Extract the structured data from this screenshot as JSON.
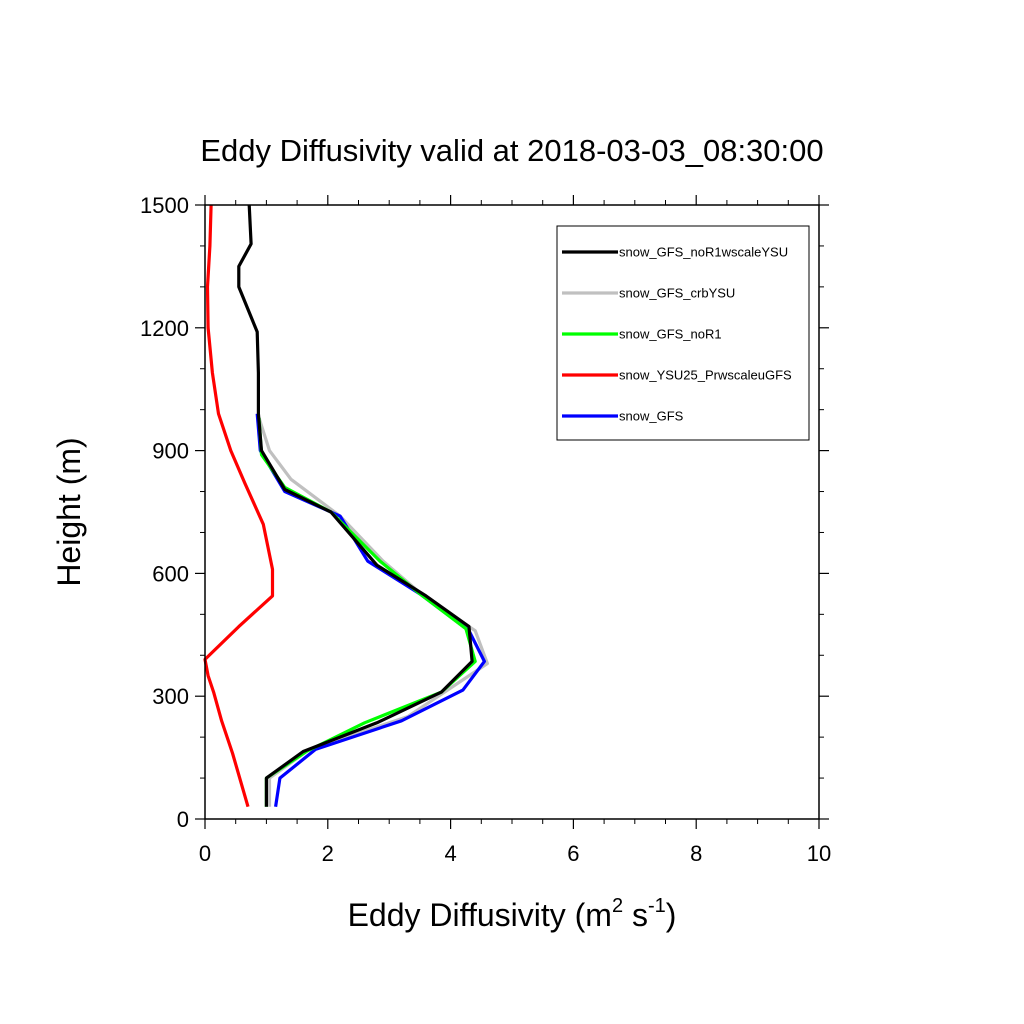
{
  "chart_data": {
    "type": "line",
    "title": "Eddy Diffusivity valid at 2018-03-03_08:30:00",
    "xlabel": "Eddy Diffusivity",
    "xlabel_units": {
      "base": "(m",
      "exp1": "2",
      "mid": " s",
      "exp2": "-1",
      "end": ")"
    },
    "ylabel": "Height (m)",
    "xlim": [
      0,
      10
    ],
    "ylim": [
      0,
      1500
    ],
    "xticks": [
      0,
      2,
      4,
      6,
      8,
      10
    ],
    "xtick_labels": [
      "0",
      "2",
      "4",
      "6",
      "8",
      "10"
    ],
    "yticks": [
      0,
      300,
      600,
      900,
      1200,
      1500
    ],
    "ytick_labels": [
      "0",
      "300",
      "600",
      "900",
      "1200",
      "1500"
    ],
    "grid": false,
    "legend_position": "top-right",
    "series": [
      {
        "name": "snow_GFS_crbYSU",
        "color": "#c0c0c0",
        "x": [
          1.05,
          1.05,
          1.7,
          3.3,
          4.6,
          4.4,
          3.6,
          2.9,
          2.2,
          1.4,
          1.05,
          0.88
        ],
        "y": [
          30,
          100,
          170,
          250,
          380,
          460,
          540,
          630,
          740,
          830,
          900,
          980
        ]
      },
      {
        "name": "snow_GFS",
        "color": "#0000ff",
        "x": [
          1.15,
          1.22,
          1.8,
          3.2,
          4.2,
          4.55,
          4.3,
          3.5,
          2.65,
          2.2,
          1.3,
          0.9,
          0.85
        ],
        "y": [
          30,
          100,
          170,
          240,
          315,
          385,
          460,
          550,
          630,
          740,
          800,
          900,
          990
        ]
      },
      {
        "name": "snow_GFS_noR1",
        "color": "#00ff00",
        "x": [
          1.0,
          1.0,
          1.65,
          2.6,
          3.85,
          4.4,
          4.25,
          3.5,
          2.85,
          2.05,
          1.3,
          0.92,
          0.88
        ],
        "y": [
          30,
          100,
          165,
          235,
          310,
          385,
          465,
          550,
          630,
          750,
          810,
          890,
          980
        ]
      },
      {
        "name": "snow_YSU25_PrwscaleuGFS",
        "color": "#ff0000",
        "x": [
          0.7,
          0.45,
          0.27,
          0.14,
          0.05,
          0.0,
          0.55,
          1.1,
          1.1,
          0.95,
          0.65,
          0.42,
          0.22,
          0.12,
          0.05,
          0.04,
          0.08,
          0.1
        ],
        "y": [
          30,
          160,
          240,
          310,
          350,
          390,
          470,
          545,
          610,
          720,
          820,
          900,
          990,
          1090,
          1200,
          1300,
          1400,
          1500
        ]
      },
      {
        "name": "snow_GFS_noR1wscaleYSU",
        "color": "#000000",
        "x": [
          1.0,
          1.0,
          1.6,
          2.8,
          3.85,
          4.35,
          4.3,
          3.6,
          2.8,
          2.05,
          1.3,
          0.92,
          0.87,
          0.87,
          0.85,
          0.55,
          0.55,
          0.75,
          0.72
        ],
        "y": [
          30,
          100,
          165,
          235,
          310,
          385,
          470,
          545,
          620,
          750,
          805,
          900,
          990,
          1090,
          1190,
          1300,
          1350,
          1405,
          1500
        ]
      }
    ]
  },
  "legend_order": [
    "snow_GFS_noR1wscaleYSU",
    "snow_GFS_crbYSU",
    "snow_GFS_noR1",
    "snow_YSU25_PrwscaleuGFS",
    "snow_GFS"
  ]
}
